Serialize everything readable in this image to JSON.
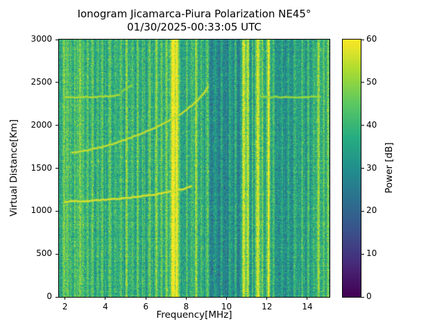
{
  "chart_data": {
    "type": "heatmap",
    "title": "Ionogram Jicamarca-Piura Polarization NE45°",
    "subtitle": "01/30/2025-00:33:05 UTC",
    "xlabel": "Frequency[MHz]",
    "ylabel": "Virtual Distance[Km]",
    "xlim": [
      1.7,
      15.1
    ],
    "ylim": [
      0,
      3000
    ],
    "x_ticks": [
      2,
      4,
      6,
      8,
      10,
      12,
      14
    ],
    "y_ticks": [
      0,
      500,
      1000,
      1500,
      2000,
      2500,
      3000
    ],
    "grid": false,
    "colorbar": {
      "label": "Power [dB]",
      "min": 0,
      "max": 60,
      "ticks": [
        0,
        10,
        20,
        30,
        40,
        50,
        60
      ],
      "colormap": "viridis",
      "position": "right"
    },
    "colormap_anchors": [
      [
        0.0,
        68,
        1,
        84
      ],
      [
        0.13,
        71,
        44,
        122
      ],
      [
        0.25,
        59,
        81,
        139
      ],
      [
        0.38,
        44,
        113,
        142
      ],
      [
        0.5,
        33,
        144,
        141
      ],
      [
        0.62,
        39,
        173,
        129
      ],
      [
        0.75,
        92,
        200,
        99
      ],
      [
        0.88,
        170,
        220,
        50
      ],
      [
        1.0,
        253,
        231,
        37
      ]
    ],
    "noise": {
      "seed": 42,
      "base_db": 34,
      "pixel_noise_db": 14,
      "col_noise_db": 7,
      "row_noise_db": 3,
      "dark_speckle_prob": 0.035,
      "dark_speckle_db": -13,
      "bright_speckle_prob": 0.028,
      "bright_speckle_db": 11
    },
    "background_regions": {
      "format": [
        "from_mhz",
        "to_mhz",
        "delta_db"
      ],
      "values": [
        [
          1.7,
          9.15,
          1.5
        ],
        [
          9.15,
          10.7,
          -6
        ],
        [
          10.7,
          12.42,
          -4
        ],
        [
          12.42,
          13.35,
          -5
        ],
        [
          13.35,
          15.1,
          -1
        ]
      ]
    },
    "rfi_stripes": {
      "format": [
        "freq_mhz",
        "sigma_mhz",
        "amp_db"
      ],
      "values": [
        [
          1.95,
          0.05,
          14
        ],
        [
          2.12,
          0.05,
          13
        ],
        [
          2.3,
          0.04,
          9
        ],
        [
          2.5,
          0.04,
          11
        ],
        [
          2.72,
          0.05,
          15
        ],
        [
          2.9,
          0.04,
          10
        ],
        [
          3.1,
          0.04,
          9
        ],
        [
          3.35,
          0.04,
          11
        ],
        [
          3.62,
          0.04,
          8
        ],
        [
          3.85,
          0.04,
          10
        ],
        [
          4.22,
          0.05,
          12
        ],
        [
          4.5,
          0.04,
          9
        ],
        [
          4.78,
          0.04,
          10
        ],
        [
          5.05,
          0.05,
          13
        ],
        [
          5.32,
          0.04,
          9
        ],
        [
          5.6,
          0.04,
          11
        ],
        [
          5.85,
          0.04,
          8
        ],
        [
          6.22,
          0.05,
          12
        ],
        [
          6.52,
          0.05,
          14
        ],
        [
          6.78,
          0.04,
          10
        ],
        [
          7.02,
          0.05,
          13
        ],
        [
          7.36,
          0.1,
          27
        ],
        [
          7.56,
          0.06,
          23
        ],
        [
          8.02,
          0.04,
          11
        ],
        [
          8.28,
          0.04,
          9
        ],
        [
          8.5,
          0.05,
          17
        ],
        [
          8.75,
          0.04,
          8
        ],
        [
          9.05,
          0.04,
          9
        ],
        [
          9.4,
          0.04,
          8
        ],
        [
          9.75,
          0.04,
          9
        ],
        [
          10.15,
          0.04,
          8
        ],
        [
          10.45,
          0.04,
          10
        ],
        [
          10.85,
          0.07,
          27
        ],
        [
          11.05,
          0.06,
          26
        ],
        [
          11.3,
          0.04,
          12
        ],
        [
          11.55,
          0.09,
          27
        ],
        [
          11.78,
          0.05,
          15
        ],
        [
          12.08,
          0.07,
          27
        ],
        [
          12.32,
          0.05,
          13
        ],
        [
          12.75,
          0.04,
          10
        ],
        [
          13.05,
          0.04,
          9
        ],
        [
          13.35,
          0.04,
          12
        ],
        [
          13.75,
          0.04,
          9
        ],
        [
          14.05,
          0.04,
          11
        ],
        [
          14.3,
          0.04,
          9
        ],
        [
          14.55,
          0.06,
          21
        ],
        [
          14.82,
          0.04,
          13
        ],
        [
          15.02,
          0.05,
          17
        ]
      ]
    },
    "echo_traces": [
      {
        "name": "echo-trace-lower",
        "power_db": 52,
        "points_f_km": [
          [
            2.0,
            1110
          ],
          [
            2.8,
            1116
          ],
          [
            3.6,
            1126
          ],
          [
            4.4,
            1140
          ],
          [
            5.2,
            1158
          ],
          [
            6.0,
            1180
          ],
          [
            6.8,
            1210
          ],
          [
            7.4,
            1238
          ],
          [
            7.9,
            1262
          ],
          [
            8.25,
            1292
          ]
        ]
      },
      {
        "name": "echo-trace-middle",
        "power_db": 50,
        "points_f_km": [
          [
            2.35,
            1678
          ],
          [
            3.0,
            1706
          ],
          [
            3.8,
            1748
          ],
          [
            4.6,
            1802
          ],
          [
            5.4,
            1868
          ],
          [
            6.2,
            1944
          ],
          [
            7.0,
            2034
          ],
          [
            7.8,
            2144
          ],
          [
            8.4,
            2252
          ],
          [
            8.85,
            2362
          ],
          [
            9.08,
            2446
          ]
        ]
      },
      {
        "name": "echo-trace-upper-flat",
        "power_db": 48,
        "points_f_km": [
          [
            2.0,
            2326
          ],
          [
            2.8,
            2329
          ],
          [
            3.6,
            2333
          ],
          [
            4.3,
            2341
          ],
          [
            4.68,
            2354
          ]
        ]
      },
      {
        "name": "echo-trace-upper-wisp",
        "power_db": 45,
        "points_f_km": [
          [
            4.78,
            2388
          ],
          [
            5.05,
            2428
          ],
          [
            5.3,
            2468
          ]
        ]
      },
      {
        "name": "echo-trace-right-faint",
        "power_db": 46,
        "points_f_km": [
          [
            11.7,
            2330
          ],
          [
            12.8,
            2329
          ],
          [
            13.9,
            2331
          ],
          [
            14.65,
            2334
          ]
        ]
      }
    ]
  }
}
